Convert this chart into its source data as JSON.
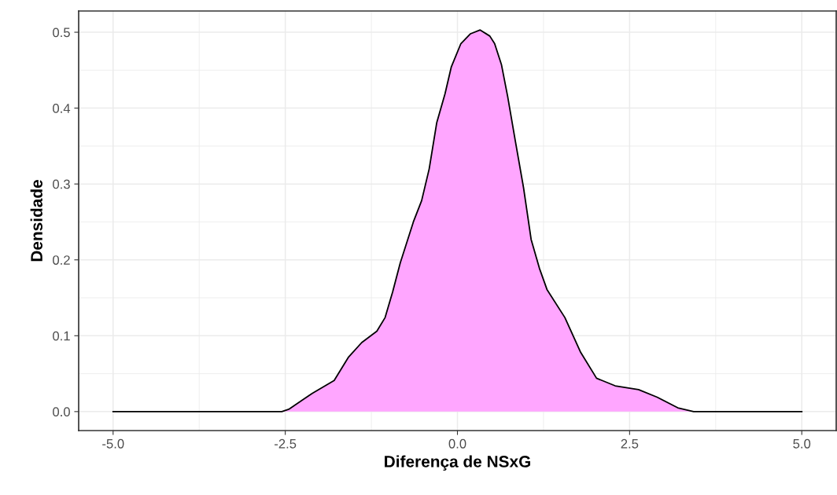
{
  "chart_data": {
    "type": "area",
    "xlabel": "Diferença de NSxG",
    "ylabel": "Densidade",
    "x": [
      -5,
      -2.55,
      -2.45,
      -2.11,
      -1.79,
      -1.58,
      -1.39,
      -1.17,
      -1.05,
      -0.94,
      -0.83,
      -0.64,
      -0.52,
      -0.41,
      -0.3,
      -0.18,
      -0.09,
      0.05,
      0.19,
      0.33,
      0.47,
      0.54,
      0.64,
      0.73,
      0.84,
      0.96,
      1.07,
      1.19,
      1.3,
      1.56,
      1.79,
      2.02,
      2.29,
      2.63,
      2.9,
      3.2,
      3.43,
      5
    ],
    "series": [
      {
        "color": "#ffa6ff",
        "values": [
          0,
          0,
          0.003,
          0.024,
          0.041,
          0.072,
          0.091,
          0.106,
          0.124,
          0.158,
          0.196,
          0.25,
          0.278,
          0.32,
          0.381,
          0.419,
          0.454,
          0.485,
          0.498,
          0.503,
          0.495,
          0.485,
          0.457,
          0.415,
          0.357,
          0.295,
          0.227,
          0.189,
          0.161,
          0.124,
          0.078,
          0.044,
          0.034,
          0.029,
          0.019,
          0.005,
          0,
          0
        ]
      }
    ],
    "xlim": [
      -5.5,
      5.5
    ],
    "ylim": [
      -0.025,
      0.528
    ],
    "xticks": [
      {
        "value": -5,
        "label": "-5.0"
      },
      {
        "value": -2.5,
        "label": "-2.5"
      },
      {
        "value": 0,
        "label": "0.0"
      },
      {
        "value": 2.5,
        "label": "2.5"
      },
      {
        "value": 5,
        "label": "5.0"
      }
    ],
    "yticks": [
      {
        "value": 0,
        "label": "0.0"
      },
      0.1,
      0.2,
      0.3,
      0.4,
      0.5
    ],
    "grid": true,
    "line_style": "solid"
  }
}
